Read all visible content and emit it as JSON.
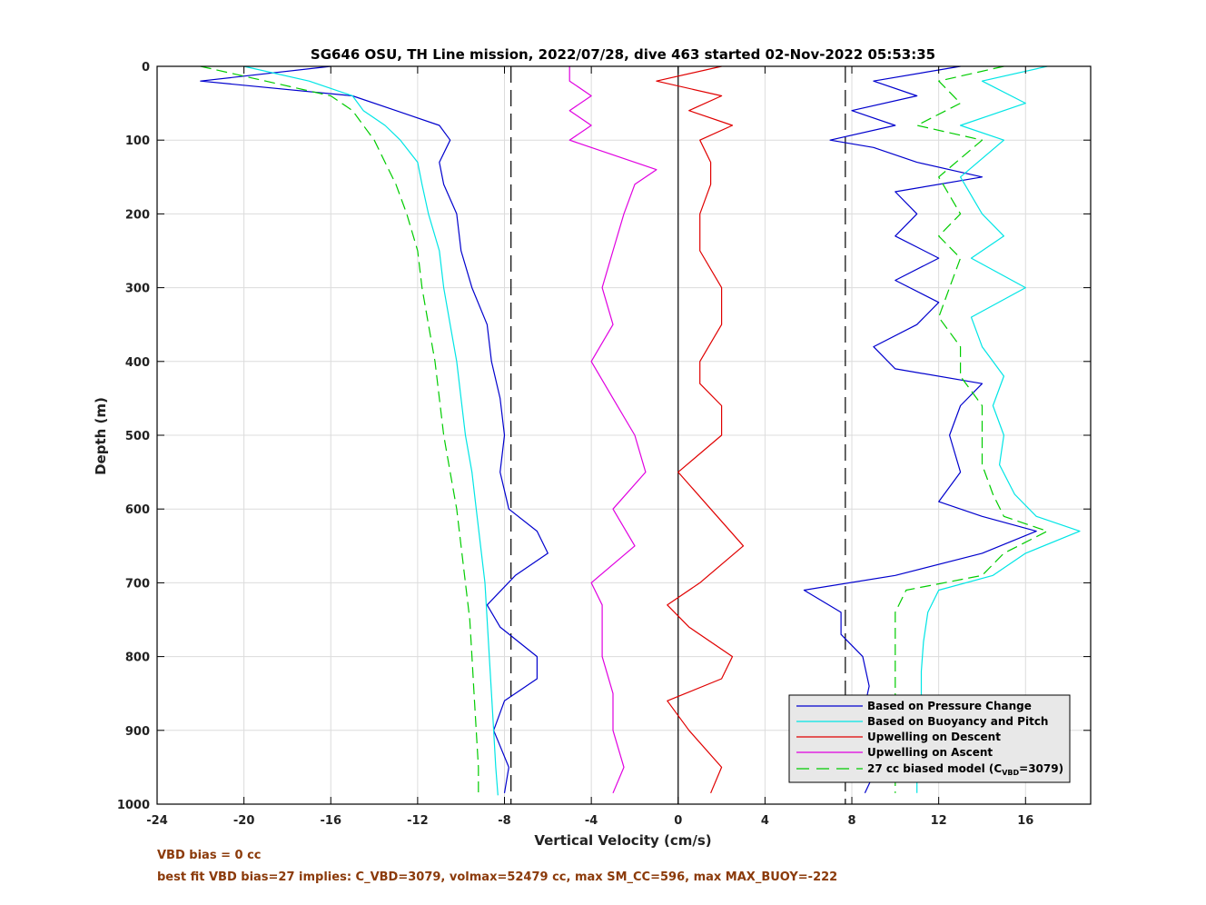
{
  "chart_data": {
    "type": "line",
    "title": "SG646 OSU, TH Line mission, 2022/07/28, dive 463 started 02-Nov-2022 05:53:35",
    "xlabel": "Vertical Velocity (cm/s)",
    "ylabel": "Depth (m)",
    "xlim": [
      -24,
      19
    ],
    "ylim": [
      1000,
      0
    ],
    "y_reversed": true,
    "grid": true,
    "legend_position": "bottom-right",
    "xticks": [
      "-24",
      "-20",
      "-16",
      "-12",
      "-8",
      "-4",
      "0",
      "4",
      "8",
      "12",
      "16"
    ],
    "xtick_values": [
      -24,
      -20,
      -16,
      -12,
      -8,
      -4,
      0,
      4,
      8,
      12,
      16
    ],
    "yticks": [
      "0",
      "100",
      "200",
      "300",
      "400",
      "500",
      "600",
      "700",
      "800",
      "900",
      "1000"
    ],
    "ytick_values": [
      0,
      100,
      200,
      300,
      400,
      500,
      600,
      700,
      800,
      900,
      1000
    ],
    "reference_lines": [
      {
        "x": -7.7,
        "style": "dashed",
        "color": "#000000"
      },
      {
        "x": 0,
        "style": "solid",
        "color": "#000000"
      },
      {
        "x": 7.7,
        "style": "dashed",
        "color": "#000000"
      }
    ],
    "series": [
      {
        "name": "Based on Pressure Change",
        "color": "#0000cd",
        "dash": false,
        "segments": [
          {
            "depth": [
              0,
              20,
              40,
              60,
              80,
              100,
              130,
              160,
              200,
              250,
              300,
              350,
              400,
              450,
              500,
              550,
              600,
              630,
              660,
              690,
              730,
              760,
              800,
              830,
              860,
              900,
              950,
              985
            ],
            "velocity": [
              -16,
              -22,
              -15,
              -13,
              -11,
              -10.5,
              -11,
              -10.8,
              -10.2,
              -10,
              -9.5,
              -8.8,
              -8.6,
              -8.2,
              -8,
              -8.2,
              -7.8,
              -6.5,
              -6,
              -7.5,
              -8.8,
              -8.2,
              -6.5,
              -6.5,
              -8,
              -8.5,
              -7.8,
              -8
            ]
          },
          {
            "depth": [
              0,
              20,
              40,
              60,
              80,
              100,
              110,
              130,
              150,
              170,
              200,
              230,
              260,
              290,
              320,
              350,
              380,
              410,
              430,
              460,
              500,
              550,
              590,
              610,
              630,
              660,
              690,
              710,
              740,
              770,
              800,
              840,
              880,
              930,
              960,
              985
            ],
            "velocity": [
              13,
              9,
              11,
              8,
              10,
              7,
              9,
              11,
              14,
              10,
              11,
              10,
              12,
              10,
              12,
              11,
              9,
              10,
              14,
              13,
              12.5,
              13,
              12,
              14,
              16.5,
              14,
              10,
              5.8,
              7.5,
              7.5,
              8.5,
              8.8,
              8.5,
              8.6,
              9,
              8.6
            ]
          }
        ]
      },
      {
        "name": "Based on Buoyancy and Pitch",
        "color": "#00e5e5",
        "dash": false,
        "segments": [
          {
            "depth": [
              0,
              20,
              40,
              60,
              80,
              100,
              130,
              160,
              200,
              250,
              300,
              350,
              400,
              450,
              500,
              550,
              600,
              650,
              700,
              750,
              800,
              850,
              900,
              950,
              988
            ],
            "velocity": [
              -20,
              -17,
              -15,
              -14.5,
              -13.5,
              -12.8,
              -12,
              -11.8,
              -11.5,
              -11,
              -10.8,
              -10.5,
              -10.2,
              -10,
              -9.8,
              -9.5,
              -9.3,
              -9.1,
              -8.9,
              -8.8,
              -8.7,
              -8.6,
              -8.5,
              -8.4,
              -8.3
            ]
          },
          {
            "depth": [
              0,
              20,
              50,
              80,
              100,
              150,
              200,
              230,
              260,
              300,
              340,
              380,
              420,
              460,
              500,
              540,
              580,
              610,
              630,
              660,
              690,
              710,
              740,
              780,
              820,
              870,
              920,
              960,
              985
            ],
            "velocity": [
              17,
              14,
              16,
              13,
              15,
              13,
              14,
              15,
              13.5,
              16,
              13.5,
              14,
              15,
              14.5,
              15,
              14.8,
              15.5,
              16.5,
              18.5,
              16,
              14.5,
              12,
              11.5,
              11.3,
              11.2,
              11.2,
              11.1,
              11,
              11
            ]
          }
        ]
      },
      {
        "name": "Upwelling on Descent",
        "color": "#e00000",
        "dash": false,
        "segments": [
          {
            "depth": [
              0,
              20,
              40,
              60,
              80,
              100,
              130,
              160,
              200,
              250,
              300,
              350,
              400,
              430,
              460,
              500,
              550,
              600,
              650,
              700,
              730,
              760,
              800,
              830,
              860,
              900,
              950,
              985
            ],
            "velocity": [
              2,
              -1,
              2,
              0.5,
              2.5,
              1,
              1.5,
              1.5,
              1,
              1,
              2,
              2,
              1,
              1,
              2,
              2,
              0,
              1.5,
              3,
              1,
              -0.5,
              0.5,
              2.5,
              2,
              -0.5,
              0.5,
              2,
              1.5
            ]
          }
        ]
      },
      {
        "name": "Upwelling on Ascent",
        "color": "#e000e0",
        "dash": false,
        "segments": [
          {
            "depth": [
              0,
              20,
              40,
              60,
              80,
              100,
              120,
              140,
              160,
              200,
              250,
              300,
              350,
              400,
              450,
              500,
              550,
              600,
              650,
              700,
              730,
              760,
              800,
              850,
              900,
              950,
              985
            ],
            "velocity": [
              -5,
              -5,
              -4,
              -5,
              -4,
              -5,
              -3,
              -1,
              -2,
              -2.5,
              -3,
              -3.5,
              -3,
              -4,
              -3,
              -2,
              -1.5,
              -3,
              -2,
              -4,
              -3.5,
              -3.5,
              -3.5,
              -3,
              -3,
              -2.5,
              -3
            ]
          }
        ]
      },
      {
        "name": "27 cc biased model (C_VBD=3079)",
        "color": "#00cc00",
        "dash": true,
        "segments": [
          {
            "depth": [
              0,
              20,
              40,
              60,
              80,
              100,
              130,
              160,
              200,
              250,
              300,
              350,
              400,
              450,
              500,
              550,
              600,
              650,
              700,
              750,
              800,
              850,
              900,
              950,
              988
            ],
            "velocity": [
              -22,
              -19,
              -16,
              -15,
              -14.5,
              -14,
              -13.5,
              -13,
              -12.5,
              -12,
              -11.8,
              -11.5,
              -11.2,
              -11,
              -10.8,
              -10.5,
              -10.2,
              -10,
              -9.8,
              -9.6,
              -9.5,
              -9.4,
              -9.3,
              -9.2,
              -9.2
            ]
          },
          {
            "depth": [
              0,
              20,
              50,
              80,
              100,
              150,
              200,
              230,
              260,
              300,
              340,
              380,
              420,
              460,
              500,
              540,
              580,
              610,
              630,
              660,
              690,
              710,
              740,
              780,
              820,
              870,
              920,
              960,
              985
            ],
            "velocity": [
              15,
              12,
              13,
              11,
              14,
              12,
              13,
              12,
              13,
              12.5,
              12,
              13,
              13,
              14,
              14,
              14,
              14.5,
              15,
              17,
              15,
              14,
              10.5,
              10,
              10,
              10,
              10,
              10,
              10,
              10
            ]
          }
        ]
      }
    ],
    "legend_labels": {
      "series_0": "Based on Pressure Change",
      "series_1": "Based on Buoyancy and Pitch",
      "series_2": "Upwelling on Descent",
      "series_3": "Upwelling on Ascent",
      "series_4_prefix": "27 cc biased model (C",
      "series_4_sub": "VBD",
      "series_4_suffix": "=3079)"
    }
  },
  "notes": {
    "line1": "VBD bias = 0 cc",
    "line2": "best fit VBD bias=27 implies: C_VBD=3079, volmax=52479 cc, max SM_CC=596, max MAX_BUOY=-222"
  }
}
